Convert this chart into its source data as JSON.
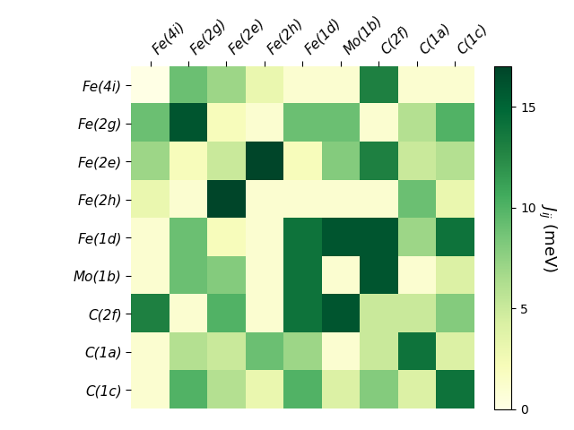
{
  "labels": [
    "Fe(4i)",
    "Fe(2g)",
    "Fe(2e)",
    "Fe(2h)",
    "Fe(1d)",
    "Mo(1b)",
    "C(2f)",
    "C(1a)",
    "C(1c)"
  ],
  "matrix": [
    [
      0,
      9,
      7,
      3,
      1,
      1,
      13,
      1,
      1
    ],
    [
      9,
      16,
      2,
      1,
      9,
      9,
      1,
      6,
      10
    ],
    [
      7,
      2,
      5,
      17,
      2,
      8,
      13,
      5,
      6
    ],
    [
      3,
      1,
      17,
      1,
      1,
      1,
      1,
      9,
      3
    ],
    [
      1,
      9,
      2,
      1,
      14,
      16,
      16,
      7,
      14
    ],
    [
      1,
      9,
      8,
      1,
      14,
      1,
      16,
      1,
      4
    ],
    [
      13,
      1,
      10,
      1,
      14,
      16,
      5,
      5,
      8
    ],
    [
      1,
      6,
      5,
      9,
      7,
      1,
      5,
      14,
      4
    ],
    [
      1,
      10,
      6,
      3,
      10,
      4,
      8,
      4,
      14
    ]
  ],
  "vmin": 0,
  "vmax": 17,
  "cbar_label": "$J_{ij}$ (meV)",
  "cbar_ticks": [
    0,
    5,
    10,
    15
  ],
  "colormap": "YlGn",
  "figsize": [
    6.4,
    4.8
  ],
  "dpi": 100,
  "tick_fontsize": 11,
  "cbar_label_fontsize": 13
}
